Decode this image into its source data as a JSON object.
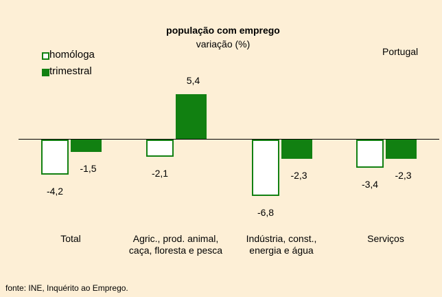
{
  "chart_data": {
    "type": "bar",
    "title": "população com emprego",
    "subtitle": "variação (%)",
    "annotation": "Portugal",
    "source": "fonte: INE, Inquérito ao Emprego.",
    "categories": [
      "Total",
      "Agric., prod. animal, caça, floresta e pesca",
      "Indústria, const., energia e água",
      "Serviços"
    ],
    "series": [
      {
        "name": "homóloga",
        "color": "#ffffff",
        "stroke": "#118011",
        "values": [
          -4.2,
          -2.1,
          -6.8,
          -3.4
        ],
        "value_labels": [
          "-4,2",
          "-2,1",
          "-6,8",
          "-3,4"
        ]
      },
      {
        "name": "trimestral",
        "color": "#118011",
        "stroke": "#118011",
        "values": [
          -1.5,
          5.4,
          -2.3,
          -2.3
        ],
        "value_labels": [
          "-1,5",
          "5,4",
          "-2,3",
          "-2,3"
        ]
      }
    ],
    "ylim": [
      -8,
      8
    ]
  }
}
